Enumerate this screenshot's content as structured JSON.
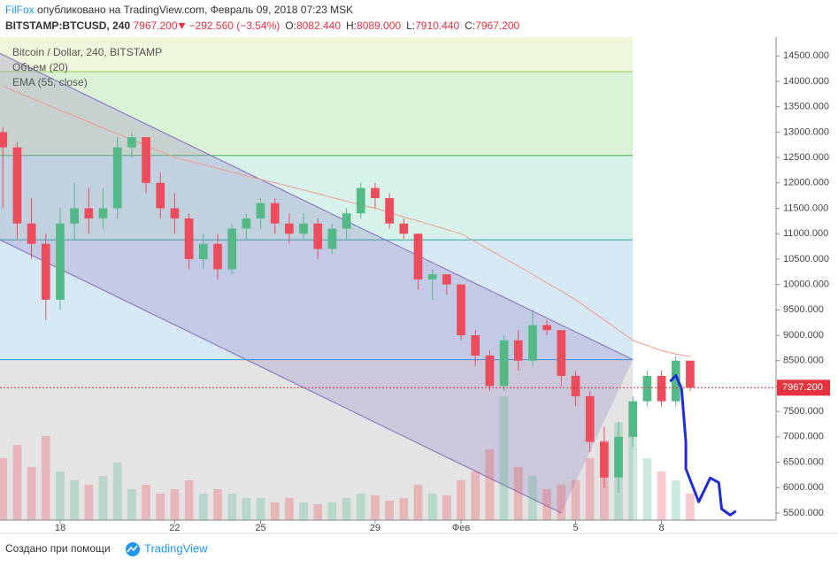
{
  "header": {
    "author": "FilFox",
    "published": "опубликовано на TradingView.com, Февраль 09, 2018 07:23 MSK",
    "symbol": "BITSTAMP:BTCUSD, 240",
    "price": "7967.200",
    "change": "−292.560 (−3.54%)",
    "ohlc": [
      {
        "label": "O:",
        "value": "8082.440"
      },
      {
        "label": "H:",
        "value": "8089.000"
      },
      {
        "label": "L:",
        "value": "7910.440"
      },
      {
        "label": "C:",
        "value": "7967.200"
      }
    ]
  },
  "footer": {
    "text": "Создано при помощи",
    "brand": "TradingView"
  },
  "chart_data": {
    "type": "candlestick",
    "title": "Bitcoin / Dollar, 240, BITSTAMP",
    "up_color": "#53b987",
    "down_color": "#eb4d5c",
    "x": [
      0,
      0.5,
      1,
      1.5,
      2,
      2.5,
      3,
      3.5,
      4,
      4.5,
      5,
      5.5,
      6,
      6.5,
      7,
      7.5,
      8,
      8.5,
      9,
      9.5,
      10,
      10.5,
      11,
      11.5,
      12,
      12.5,
      13,
      13.5,
      14,
      14.5,
      15,
      15.5,
      16,
      16.5,
      17,
      17.5,
      18,
      18.5,
      19,
      19.5,
      20,
      20.5,
      21,
      21.5,
      22,
      22.5,
      23,
      23.5,
      24
    ],
    "open": [
      13000,
      12700,
      11200,
      10800,
      9700,
      11200,
      11500,
      11300,
      11500,
      12700,
      12900,
      12000,
      11500,
      11300,
      10500,
      10800,
      10300,
      11100,
      11300,
      11600,
      11200,
      11000,
      11200,
      10700,
      11100,
      11400,
      11900,
      11700,
      11200,
      11000,
      10100,
      10200,
      10000,
      9000,
      8600,
      8000,
      8900,
      8500,
      9200,
      9100,
      8200,
      7800,
      6900,
      6200,
      7000,
      7700,
      8200,
      7700,
      8500
    ],
    "high": [
      13100,
      12800,
      11700,
      11000,
      11500,
      12000,
      11900,
      11900,
      12900,
      13000,
      12900,
      12200,
      11800,
      11400,
      11000,
      11000,
      11200,
      11400,
      11700,
      11700,
      11400,
      11400,
      11300,
      11200,
      11500,
      12000,
      12000,
      11800,
      11300,
      11000,
      10300,
      10200,
      10000,
      9100,
      8700,
      9000,
      9100,
      9500,
      9300,
      9100,
      8300,
      7900,
      7200,
      7300,
      7800,
      8300,
      8300,
      8600,
      8500
    ],
    "low": [
      11500,
      10900,
      10500,
      9300,
      9500,
      10900,
      11000,
      11100,
      11300,
      12500,
      11800,
      11300,
      11000,
      10300,
      10300,
      10100,
      10200,
      10900,
      11100,
      11000,
      10800,
      10900,
      10500,
      10600,
      10900,
      11300,
      11500,
      11100,
      10900,
      9900,
      9700,
      9800,
      8900,
      8400,
      7900,
      7900,
      8300,
      8400,
      9000,
      8000,
      7600,
      6700,
      6000,
      5900,
      6800,
      7600,
      7600,
      7600,
      7900
    ],
    "close": [
      12700,
      11200,
      10800,
      9700,
      11200,
      11500,
      11300,
      11500,
      12700,
      12900,
      12000,
      11500,
      11300,
      10500,
      10800,
      10300,
      11100,
      11300,
      11600,
      11200,
      11000,
      11200,
      10700,
      11100,
      11400,
      11900,
      11700,
      11200,
      11000,
      10100,
      10200,
      10000,
      9000,
      8600,
      8000,
      8900,
      8500,
      9200,
      9100,
      8200,
      7800,
      6900,
      6200,
      7000,
      7700,
      8200,
      7700,
      8500,
      7967.2
    ],
    "volume": {
      "name": "Объем (20)",
      "values": [
        70,
        85,
        60,
        95,
        55,
        45,
        40,
        50,
        65,
        35,
        40,
        30,
        35,
        45,
        30,
        35,
        30,
        25,
        25,
        20,
        25,
        20,
        18,
        20,
        25,
        30,
        28,
        22,
        25,
        40,
        30,
        28,
        45,
        55,
        80,
        140,
        60,
        50,
        35,
        40,
        45,
        70,
        90,
        110,
        95,
        70,
        55,
        45,
        30
      ]
    },
    "ema": {
      "name": "EMA (55, close)",
      "color": "#f19a8e",
      "values": [
        13900,
        13780,
        13670,
        13550,
        13430,
        13320,
        13200,
        13080,
        12970,
        12850,
        12730,
        12620,
        12500,
        12430,
        12360,
        12290,
        12210,
        12140,
        12070,
        12000,
        11930,
        11860,
        11790,
        11710,
        11640,
        11570,
        11500,
        11420,
        11330,
        11250,
        11170,
        11080,
        11000,
        10840,
        10680,
        10520,
        10360,
        10200,
        10030,
        9870,
        9700,
        9500,
        9300,
        9100,
        8900,
        8800,
        8700,
        8630,
        8580
      ]
    },
    "levels": [
      {
        "value": 14190,
        "color": "#9acd5a"
      },
      {
        "value": 12540,
        "color": "#4caf50"
      },
      {
        "value": 10880,
        "color": "#26a69a"
      },
      {
        "value": 8520,
        "color": "#2196f3"
      }
    ],
    "bands": [
      "#eef6dc",
      "#dcf2d6",
      "#d6f2ea",
      "#d6e8f4",
      "#e4e4e4"
    ],
    "levels_end": 22,
    "channel": {
      "color": "#8e7cc3",
      "upper_x": [
        -0.1,
        22
      ],
      "upper_y": [
        14550,
        8520
      ],
      "lower_x": [
        -0.1,
        19.5
      ],
      "lower_y": [
        10880,
        5500
      ]
    },
    "drawing": {
      "color": "#1f2bd6",
      "x": [
        23.3,
        23.5,
        23.7,
        23.85,
        23.85,
        24.3,
        24.7,
        25.0,
        25.1,
        25.4,
        25.6
      ],
      "y": [
        8090,
        8210,
        7950,
        6900,
        6370,
        5720,
        6190,
        6100,
        5580,
        5460,
        5540
      ]
    },
    "last_price": {
      "value": 7967.2,
      "label": "7967.200",
      "color": "#e5333f"
    },
    "xlim": [
      -0.1,
      27.0
    ],
    "ylim": [
      5360,
      14870
    ],
    "xticks": [
      {
        "value": 2,
        "label": "18"
      },
      {
        "value": 6,
        "label": "22"
      },
      {
        "value": 9,
        "label": "25"
      },
      {
        "value": 13,
        "label": "29"
      },
      {
        "value": 16,
        "label": "Фев"
      },
      {
        "value": 20,
        "label": "5"
      },
      {
        "value": 23,
        "label": "8"
      }
    ],
    "yticks": [
      {
        "value": 5500,
        "label": "5500.000"
      },
      {
        "value": 6000,
        "label": "6000.000"
      },
      {
        "value": 6500,
        "label": "6500.000"
      },
      {
        "value": 7000,
        "label": "7000.000"
      },
      {
        "value": 7500,
        "label": "7500.000"
      },
      {
        "value": 8000,
        "label": "8000.000"
      },
      {
        "value": 8500,
        "label": "8500.000"
      },
      {
        "value": 9000,
        "label": "9000.000"
      },
      {
        "value": 9500,
        "label": "9500.000"
      },
      {
        "value": 10000,
        "label": "10000.000"
      },
      {
        "value": 10500,
        "label": "10500.000"
      },
      {
        "value": 11000,
        "label": "11000.000"
      },
      {
        "value": 11500,
        "label": "11500.000"
      },
      {
        "value": 12000,
        "label": "12000.000"
      },
      {
        "value": 12500,
        "label": "12500.000"
      },
      {
        "value": 13000,
        "label": "13000.000"
      },
      {
        "value": 13500,
        "label": "13500.000"
      },
      {
        "value": 14000,
        "label": "14000.000"
      },
      {
        "value": 14500,
        "label": "14500.000"
      }
    ]
  }
}
